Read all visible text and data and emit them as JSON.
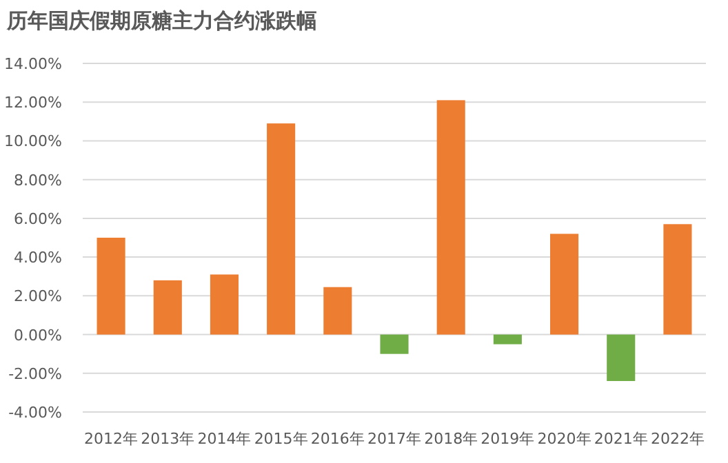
{
  "chart_data": {
    "type": "bar",
    "title": "历年国庆假期原糖主力合约涨跌幅",
    "categories": [
      "2012年",
      "2013年",
      "2014年",
      "2015年",
      "2016年",
      "2017年",
      "2018年",
      "2019年",
      "2020年",
      "2021年",
      "2022年"
    ],
    "values": [
      5.0,
      2.8,
      3.1,
      10.9,
      2.45,
      -1.0,
      12.1,
      -0.5,
      5.2,
      -2.4,
      5.7
    ],
    "colors": [
      "#ed7d31",
      "#ed7d31",
      "#ed7d31",
      "#ed7d31",
      "#ed7d31",
      "#70ad47",
      "#ed7d31",
      "#70ad47",
      "#ed7d31",
      "#70ad47",
      "#ed7d31"
    ],
    "ylim": [
      -4,
      14
    ],
    "yticks": [
      {
        "value": -4,
        "label": "-4.00%"
      },
      {
        "value": -2,
        "label": "-2.00%"
      },
      {
        "value": 0,
        "label": "0.00%"
      },
      {
        "value": 2,
        "label": "2.00%"
      },
      {
        "value": 4,
        "label": "4.00%"
      },
      {
        "value": 6,
        "label": "6.00%"
      },
      {
        "value": 8,
        "label": "8.00%"
      },
      {
        "value": 10,
        "label": "10.00%"
      },
      {
        "value": 12,
        "label": "12.00%"
      },
      {
        "value": 14,
        "label": "14.00%"
      }
    ],
    "grid": "y"
  }
}
